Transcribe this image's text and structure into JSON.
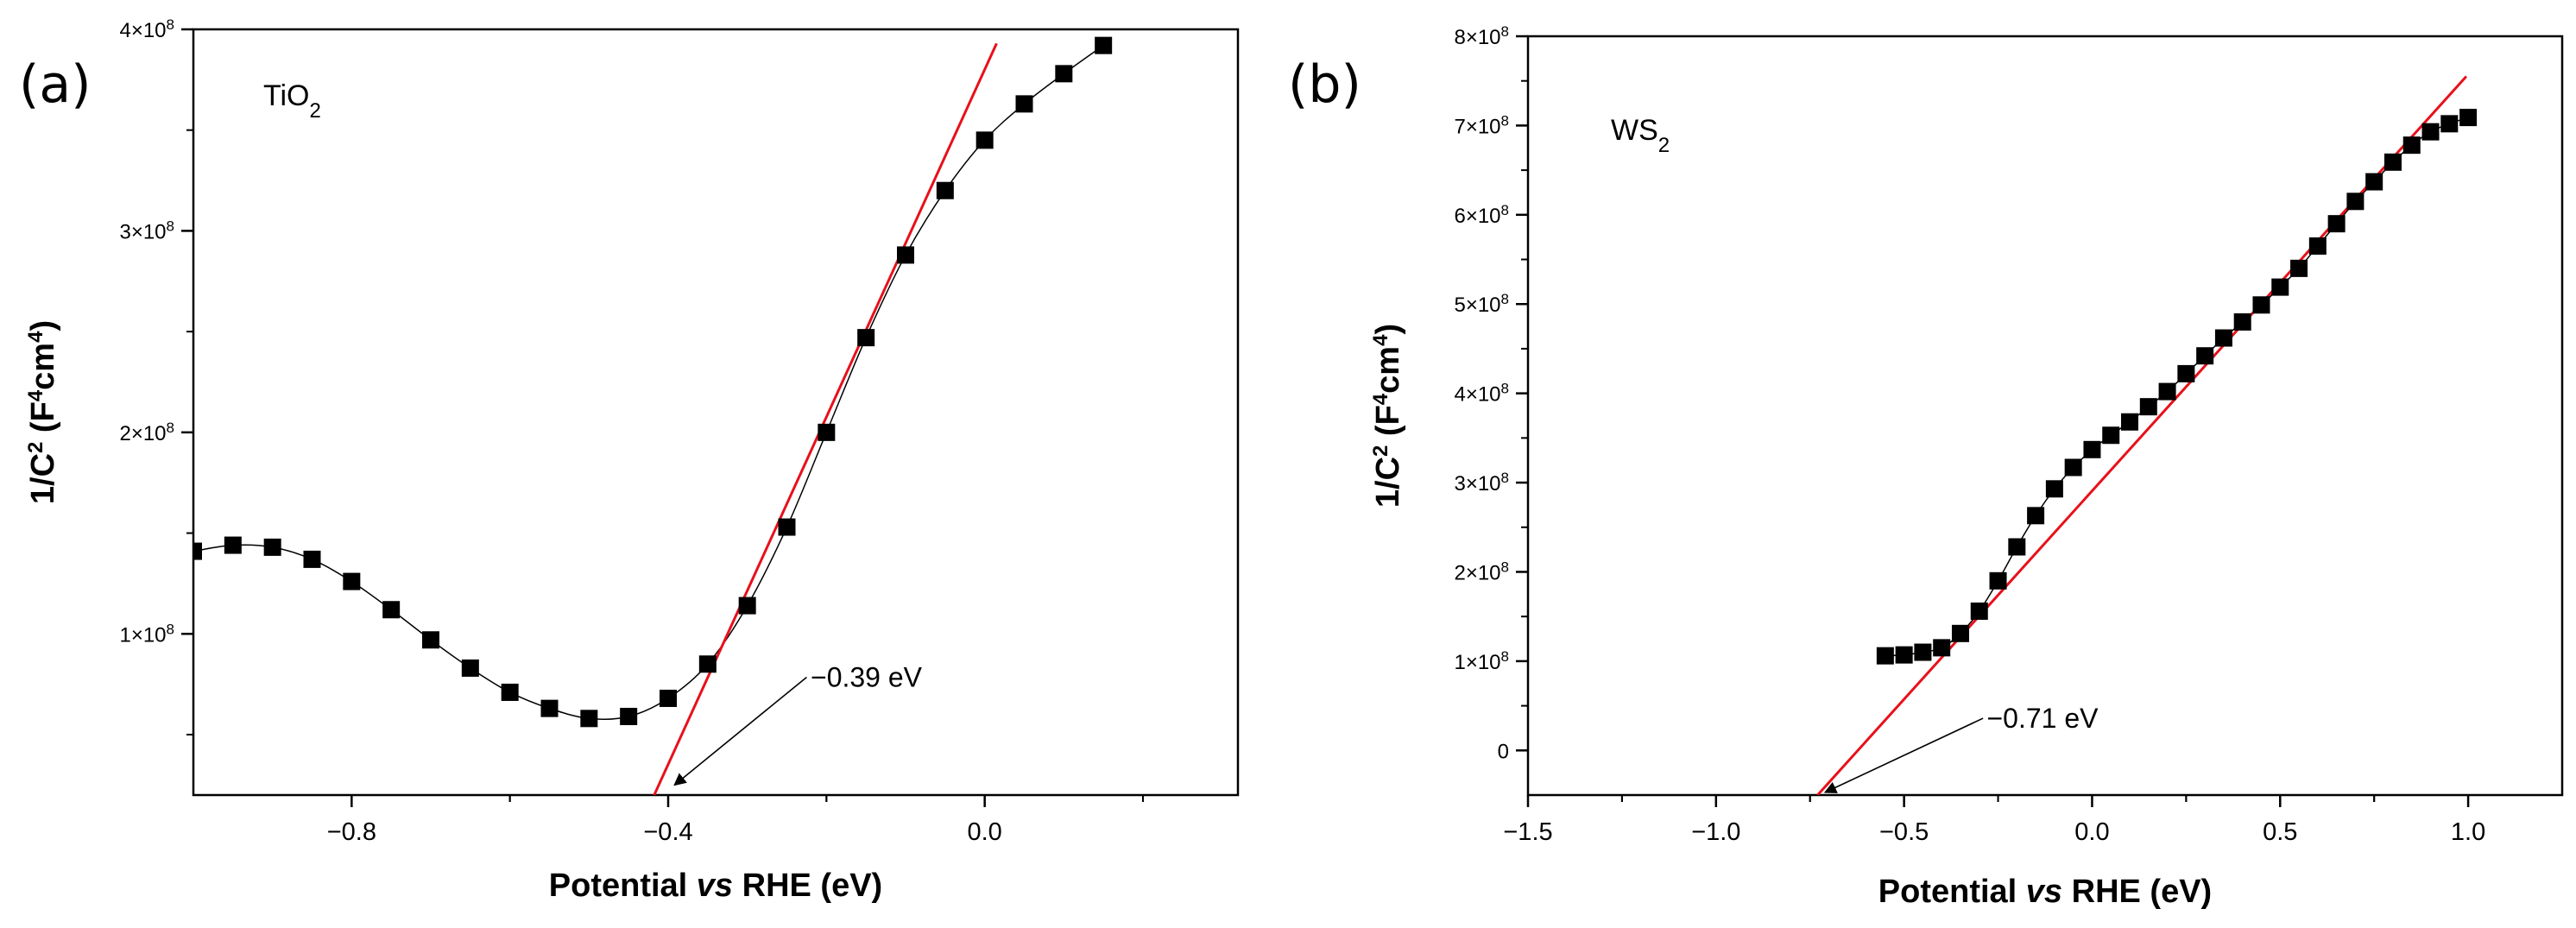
{
  "figure": {
    "y_unit_base": "×10",
    "y_unit_exp": "8"
  },
  "chart_data": [
    {
      "type": "scatter",
      "panel_label": "(a)",
      "sample": {
        "main": "TiO",
        "sub": "2"
      },
      "xlabel": {
        "pre": "Potential ",
        "italic": "vs",
        "post": " RHE (eV)"
      },
      "ylabel": {
        "pre": "1/C",
        "sup1": "2",
        "mid": " (F",
        "sup2": "4",
        "mid2": "cm",
        "sup3": "4",
        "post": ")"
      },
      "xlim": [
        -1.0,
        0.32
      ],
      "ylim": [
        20000000.0,
        400000000.0
      ],
      "xticks": [
        -0.8,
        -0.4,
        0.0
      ],
      "xtick_labels": [
        "−0.8",
        "−0.4",
        "0.0"
      ],
      "yticks": [
        100000000.0,
        200000000.0,
        300000000.0,
        400000000.0
      ],
      "ytick_labels": [
        "1",
        "2",
        "3",
        "4"
      ],
      "grid": false,
      "series": [
        {
          "name": "TiO2",
          "color": "#000000",
          "marker": "square",
          "connected": true,
          "x": [
            -1.0,
            -0.95,
            -0.9,
            -0.85,
            -0.8,
            -0.75,
            -0.7,
            -0.65,
            -0.6,
            -0.55,
            -0.5,
            -0.45,
            -0.4,
            -0.35,
            -0.3,
            -0.25,
            -0.2,
            -0.15,
            -0.1,
            -0.05,
            0.0,
            0.05,
            0.1,
            0.15
          ],
          "y": [
            141000000.0,
            144000000.0,
            143000000.0,
            137000000.0,
            126000000.0,
            112000000.0,
            97000000.0,
            83000000.0,
            71000000.0,
            63000000.0,
            58000000.0,
            59000000.0,
            68000000.0,
            85000000.0,
            114000000.0,
            153000000.0,
            200000000.0,
            247000000.0,
            288000000.0,
            320000000.0,
            345000000.0,
            363000000.0,
            378000000.0,
            392000000.0
          ]
        }
      ],
      "fit_line": {
        "color": "#e8101a",
        "x": [
          -0.42,
          0.015
        ],
        "y": [
          18000000.0,
          393000000.0
        ]
      },
      "annotation": {
        "text": "−0.39 eV",
        "text_x": -0.22,
        "text_y": 78500000.0,
        "arrow_from": [
          -0.225,
          78500000.0
        ],
        "arrow_to": [
          -0.392,
          25000000.0
        ]
      }
    },
    {
      "type": "scatter",
      "panel_label": "(b)",
      "sample": {
        "main": "WS",
        "sub": "2"
      },
      "xlabel": {
        "pre": "Potential ",
        "italic": "vs",
        "post": " RHE (eV)"
      },
      "ylabel": {
        "pre": "1/C",
        "sup1": "2",
        "mid": " (F",
        "sup2": "4",
        "mid2": "cm",
        "sup3": "4",
        "post": ")"
      },
      "xlim": [
        -1.5,
        1.25
      ],
      "ylim": [
        -50000000.0,
        800000000.0
      ],
      "xticks": [
        -1.5,
        -1.0,
        -0.5,
        0.0,
        0.5,
        1.0
      ],
      "xtick_labels": [
        "−1.5",
        "−1.0",
        "−0.5",
        "0.0",
        "0.5",
        "1.0"
      ],
      "yticks": [
        0,
        100000000.0,
        200000000.0,
        300000000.0,
        400000000.0,
        500000000.0,
        600000000.0,
        700000000.0,
        800000000.0
      ],
      "ytick_labels": [
        "0",
        "1",
        "2",
        "3",
        "4",
        "5",
        "6",
        "7",
        "8"
      ],
      "grid": false,
      "series": [
        {
          "name": "WS2",
          "color": "#000000",
          "marker": "square",
          "connected": true,
          "x": [
            -0.55,
            -0.5,
            -0.45,
            -0.4,
            -0.35,
            -0.3,
            -0.25,
            -0.2,
            -0.15,
            -0.1,
            -0.05,
            0.0,
            0.05,
            0.1,
            0.15,
            0.2,
            0.25,
            0.3,
            0.35,
            0.4,
            0.45,
            0.5,
            0.55,
            0.6,
            0.65,
            0.7,
            0.75,
            0.8,
            0.85,
            0.9,
            0.95,
            1.0
          ],
          "y": [
            106000000.0,
            107000000.0,
            110000000.0,
            115000000.0,
            131000000.0,
            156000000.0,
            190000000.0,
            228000000.0,
            263000000.0,
            293000000.0,
            317000000.0,
            337000000.0,
            353000000.0,
            368000000.0,
            385000000.0,
            402000000.0,
            422000000.0,
            442000000.0,
            462000000.0,
            480000000.0,
            499000000.0,
            519000000.0,
            540000000.0,
            565000000.0,
            590000000.0,
            615000000.0,
            637000000.0,
            659000000.0,
            678000000.0,
            693000000.0,
            702000000.0,
            709000000.0
          ]
        }
      ],
      "fit_line": {
        "color": "#e8101a",
        "x": [
          -0.73,
          0.995
        ],
        "y": [
          -50000000.0,
          755000000.0
        ]
      },
      "annotation": {
        "text": "−0.71 eV",
        "text_x": -0.28,
        "text_y": 36000000.0,
        "arrow_from": [
          -0.29,
          36000000.0
        ],
        "arrow_to": [
          -0.71,
          -47000000.0
        ]
      }
    }
  ]
}
